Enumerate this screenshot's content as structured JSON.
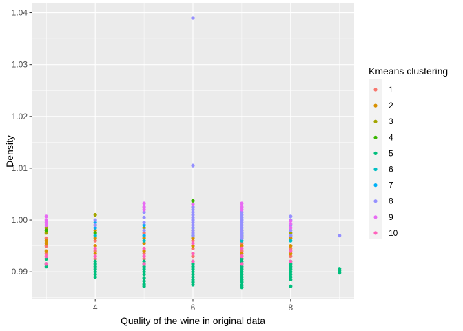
{
  "chart_data": {
    "type": "scatter",
    "title": "",
    "xlabel": "Quality of the wine in original data",
    "ylabel": "Density",
    "xlim": [
      2.7,
      9.3
    ],
    "ylim": [
      0.9847,
      1.0418
    ],
    "x_ticks": [
      4,
      6,
      8
    ],
    "x_tick_labels": [
      "4",
      "6",
      "8"
    ],
    "y_ticks": [
      0.99,
      1.0,
      1.01,
      1.02,
      1.03,
      1.04
    ],
    "y_tick_labels": [
      "0.99",
      "1.00",
      "1.01",
      "1.02",
      "1.03",
      "1.04"
    ],
    "grid": true,
    "legend": {
      "title": "Kmeans clustering",
      "position": "right",
      "entries": [
        "1",
        "2",
        "3",
        "4",
        "5",
        "6",
        "7",
        "8",
        "9",
        "10"
      ]
    },
    "colors": [
      "#F8766D",
      "#D89000",
      "#A3A500",
      "#39B600",
      "#00BF7D",
      "#00BFC4",
      "#00B0F6",
      "#9590FF",
      "#E76BF3",
      "#FF62BC"
    ],
    "series": [
      {
        "name": "1",
        "points": [
          [
            3,
            0.9935
          ],
          [
            3,
            0.995
          ],
          [
            3,
            0.9965
          ],
          [
            4,
            0.9925
          ],
          [
            4,
            0.994
          ],
          [
            4,
            0.996
          ],
          [
            5,
            0.9925
          ],
          [
            5,
            0.9935
          ],
          [
            5,
            0.9955
          ],
          [
            5,
            0.9975
          ],
          [
            6,
            0.993
          ],
          [
            6,
            0.9945
          ],
          [
            6,
            0.996
          ],
          [
            7,
            0.9925
          ],
          [
            7,
            0.994
          ],
          [
            7,
            0.9955
          ],
          [
            8,
            0.993
          ],
          [
            8,
            0.9945
          ]
        ]
      },
      {
        "name": "2",
        "points": [
          [
            3,
            0.994
          ],
          [
            3,
            0.9955
          ],
          [
            3,
            0.996
          ],
          [
            4,
            0.9935
          ],
          [
            4,
            0.995
          ],
          [
            4,
            0.9965
          ],
          [
            4,
            0.998
          ],
          [
            5,
            0.994
          ],
          [
            5,
            0.9955
          ],
          [
            5,
            0.9965
          ],
          [
            6,
            0.9935
          ],
          [
            6,
            0.995
          ],
          [
            6,
            0.9965
          ],
          [
            7,
            0.9935
          ],
          [
            7,
            0.995
          ],
          [
            7,
            0.9965
          ],
          [
            8,
            0.9935
          ],
          [
            8,
            0.995
          ],
          [
            8,
            0.9965
          ]
        ]
      },
      {
        "name": "3",
        "points": [
          [
            3,
            0.9975
          ],
          [
            3,
            0.9985
          ],
          [
            4,
            1.001
          ],
          [
            4,
            0.999
          ],
          [
            5,
            0.9985
          ],
          [
            6,
            0.998
          ],
          [
            7,
            0.998
          ],
          [
            8,
            0.9975
          ]
        ]
      },
      {
        "name": "4",
        "points": [
          [
            3,
            0.998
          ],
          [
            4,
            0.9975
          ],
          [
            6,
            1.0037
          ],
          [
            7,
            0.997
          ]
        ]
      },
      {
        "name": "5",
        "points": [
          [
            3,
            0.991
          ],
          [
            3,
            0.9915
          ],
          [
            3,
            0.9925
          ],
          [
            4,
            0.989
          ],
          [
            4,
            0.9895
          ],
          [
            4,
            0.99
          ],
          [
            4,
            0.9905
          ],
          [
            4,
            0.991
          ],
          [
            4,
            0.9915
          ],
          [
            4,
            0.992
          ],
          [
            5,
            0.9872
          ],
          [
            5,
            0.9876
          ],
          [
            5,
            0.9882
          ],
          [
            5,
            0.9888
          ],
          [
            5,
            0.9895
          ],
          [
            5,
            0.99
          ],
          [
            5,
            0.9905
          ],
          [
            5,
            0.991
          ],
          [
            5,
            0.9915
          ],
          [
            5,
            0.992
          ],
          [
            6,
            0.9875
          ],
          [
            6,
            0.988
          ],
          [
            6,
            0.9885
          ],
          [
            6,
            0.989
          ],
          [
            6,
            0.9895
          ],
          [
            6,
            0.99
          ],
          [
            6,
            0.9905
          ],
          [
            6,
            0.991
          ],
          [
            6,
            0.9915
          ],
          [
            6,
            0.992
          ],
          [
            7,
            0.987
          ],
          [
            7,
            0.9874
          ],
          [
            7,
            0.988
          ],
          [
            7,
            0.9885
          ],
          [
            7,
            0.989
          ],
          [
            7,
            0.9895
          ],
          [
            7,
            0.99
          ],
          [
            7,
            0.9905
          ],
          [
            7,
            0.991
          ],
          [
            7,
            0.9915
          ],
          [
            7,
            0.992
          ],
          [
            7,
            0.9925
          ],
          [
            7,
            0.993
          ],
          [
            8,
            0.9872
          ],
          [
            8,
            0.9885
          ],
          [
            8,
            0.989
          ],
          [
            8,
            0.9895
          ],
          [
            8,
            0.99
          ],
          [
            8,
            0.9905
          ],
          [
            8,
            0.991
          ],
          [
            8,
            0.9915
          ],
          [
            8,
            0.992
          ],
          [
            9,
            0.9898
          ],
          [
            9,
            0.9902
          ],
          [
            9,
            0.9906
          ]
        ]
      },
      {
        "name": "6",
        "points": [
          [
            4,
            0.997
          ],
          [
            5,
            0.996
          ],
          [
            6,
            0.997
          ],
          [
            7,
            0.996
          ],
          [
            8,
            0.996
          ]
        ]
      },
      {
        "name": "7",
        "points": [
          [
            4,
            0.9985
          ],
          [
            4,
            0.9995
          ],
          [
            5,
            0.997
          ],
          [
            5,
            0.999
          ],
          [
            6,
            0.9985
          ],
          [
            7,
            0.9975
          ],
          [
            8,
            0.997
          ]
        ]
      },
      {
        "name": "8",
        "points": [
          [
            4,
            0.999
          ],
          [
            4,
            1.0
          ],
          [
            5,
            0.998
          ],
          [
            5,
            0.9995
          ],
          [
            5,
            1.0005
          ],
          [
            5,
            1.0015
          ],
          [
            6,
            0.997
          ],
          [
            6,
            0.9975
          ],
          [
            6,
            0.998
          ],
          [
            6,
            0.9985
          ],
          [
            6,
            0.999
          ],
          [
            6,
            0.9995
          ],
          [
            6,
            1.0
          ],
          [
            6,
            1.0005
          ],
          [
            6,
            1.001
          ],
          [
            6,
            1.0015
          ],
          [
            6,
            1.002
          ],
          [
            6,
            1.0025
          ],
          [
            6,
            1.0105
          ],
          [
            6,
            1.039
          ],
          [
            7,
            0.9965
          ],
          [
            7,
            0.997
          ],
          [
            7,
            0.9975
          ],
          [
            7,
            0.998
          ],
          [
            7,
            0.9985
          ],
          [
            7,
            0.999
          ],
          [
            7,
            0.9995
          ],
          [
            7,
            1.0
          ],
          [
            7,
            1.0005
          ],
          [
            7,
            1.001
          ],
          [
            7,
            1.0015
          ],
          [
            8,
            0.997
          ],
          [
            8,
            0.998
          ],
          [
            8,
            0.999
          ],
          [
            8,
            1.0
          ],
          [
            8,
            1.0007
          ],
          [
            9,
            0.997
          ]
        ]
      },
      {
        "name": "9",
        "points": [
          [
            3,
            0.999
          ],
          [
            3,
            0.9995
          ],
          [
            3,
            1.0
          ],
          [
            3,
            1.0007
          ],
          [
            5,
            1.002
          ],
          [
            5,
            1.0025
          ],
          [
            5,
            1.0032
          ],
          [
            6,
            1.003
          ],
          [
            7,
            1.002
          ],
          [
            7,
            1.0025
          ],
          [
            7,
            1.0032
          ],
          [
            8,
            0.9985
          ],
          [
            8,
            0.9992
          ],
          [
            8,
            0.9998
          ]
        ]
      },
      {
        "name": "10",
        "points": [
          [
            3,
            0.9915
          ],
          [
            3,
            0.993
          ],
          [
            4,
            0.993
          ],
          [
            4,
            0.9945
          ],
          [
            5,
            0.9915
          ],
          [
            5,
            0.993
          ],
          [
            5,
            0.9945
          ],
          [
            6,
            0.992
          ],
          [
            6,
            0.9935
          ],
          [
            6,
            0.9955
          ],
          [
            7,
            0.9915
          ],
          [
            7,
            0.993
          ],
          [
            7,
            0.9945
          ],
          [
            8,
            0.992
          ],
          [
            8,
            0.994
          ]
        ]
      }
    ]
  }
}
